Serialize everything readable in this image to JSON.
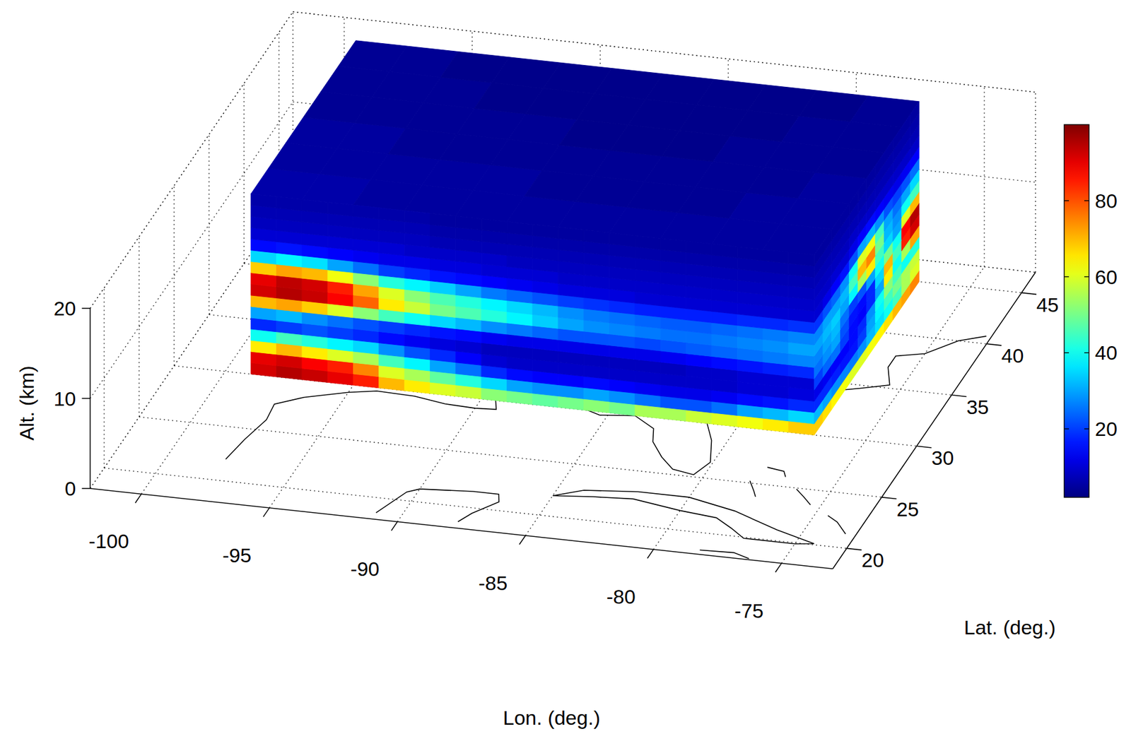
{
  "chart_data": {
    "type": "slice3d",
    "x_label": "Lon. (deg.)",
    "y_label": "Lat. (deg.)",
    "z_label": "Alt. (km)",
    "xlim": [
      -102,
      -73
    ],
    "xticks": [
      -100,
      -95,
      -90,
      -85,
      -80,
      -75
    ],
    "ylim": [
      18,
      47
    ],
    "yticks": [
      20,
      25,
      30,
      35,
      40,
      45
    ],
    "zlim": [
      0,
      20
    ],
    "zticks": [
      0,
      10,
      20
    ],
    "grid": true,
    "colorbar": {
      "range": [
        2,
        100
      ],
      "ticks": [
        20,
        40,
        60,
        80
      ]
    },
    "lat_slice": {
      "lat": 30,
      "lon_edges": [
        -99,
        -98,
        -97,
        -96,
        -95,
        -94,
        -93,
        -92,
        -91,
        -90,
        -89,
        -88,
        -87,
        -86,
        -85,
        -84,
        -83,
        -82,
        -81,
        -80,
        -79,
        -78,
        -77
      ],
      "alt_edges": [
        0,
        1.25,
        2.5,
        3.75,
        5,
        6.25,
        7.5,
        8.75,
        10,
        11.25,
        12.5,
        13.75,
        15,
        16.25,
        17.5,
        18.75,
        20
      ],
      "cells": [
        [
          92,
          95,
          93,
          90,
          85,
          70,
          65,
          60,
          58,
          52,
          50,
          48,
          50,
          52,
          50,
          55,
          55,
          58,
          60,
          62,
          65,
          68
        ],
        [
          90,
          92,
          88,
          85,
          75,
          60,
          55,
          48,
          42,
          35,
          30,
          28,
          28,
          30,
          28,
          25,
          22,
          22,
          25,
          30,
          32,
          35
        ],
        [
          65,
          70,
          65,
          60,
          55,
          45,
          38,
          30,
          25,
          18,
          15,
          14,
          14,
          15,
          14,
          13,
          12,
          12,
          13,
          15,
          16,
          18
        ],
        [
          40,
          45,
          42,
          38,
          35,
          28,
          22,
          18,
          14,
          10,
          9,
          9,
          9,
          9,
          9,
          9,
          9,
          9,
          9,
          10,
          10,
          11
        ],
        [
          18,
          20,
          22,
          20,
          18,
          15,
          13,
          11,
          10,
          8,
          8,
          8,
          8,
          8,
          8,
          8,
          8,
          9,
          9,
          10,
          10,
          10
        ],
        [
          30,
          32,
          28,
          25,
          22,
          20,
          18,
          16,
          15,
          13,
          12,
          12,
          12,
          12,
          12,
          12,
          13,
          14,
          15,
          16,
          17,
          18
        ],
        [
          70,
          72,
          68,
          60,
          52,
          45,
          40,
          35,
          32,
          28,
          26,
          24,
          22,
          22,
          22,
          21,
          22,
          23,
          24,
          25,
          26,
          27
        ],
        [
          92,
          95,
          93,
          88,
          78,
          65,
          58,
          50,
          46,
          42,
          38,
          34,
          30,
          28,
          27,
          26,
          25,
          25,
          26,
          27,
          28,
          30
        ],
        [
          90,
          94,
          92,
          85,
          72,
          60,
          52,
          46,
          42,
          38,
          35,
          32,
          28,
          26,
          25,
          24,
          23,
          23,
          24,
          25,
          26,
          27
        ],
        [
          68,
          72,
          70,
          62,
          52,
          42,
          38,
          34,
          30,
          26,
          24,
          22,
          20,
          19,
          18,
          17,
          17,
          17,
          17,
          18,
          18,
          19
        ],
        [
          35,
          38,
          36,
          30,
          25,
          20,
          18,
          16,
          15,
          14,
          13,
          12,
          11,
          11,
          11,
          10,
          10,
          10,
          10,
          10,
          10,
          10
        ],
        [
          15,
          16,
          15,
          14,
          13,
          12,
          12,
          11,
          11,
          10,
          10,
          10,
          9,
          9,
          9,
          9,
          9,
          9,
          9,
          9,
          9,
          9
        ],
        [
          10,
          10,
          10,
          10,
          10,
          10,
          9,
          9,
          9,
          9,
          8,
          8,
          8,
          8,
          8,
          8,
          8,
          8,
          8,
          8,
          8,
          8
        ],
        [
          8,
          8,
          8,
          8,
          8,
          8,
          8,
          7,
          7,
          7,
          7,
          7,
          7,
          7,
          7,
          7,
          7,
          7,
          7,
          7,
          7,
          7
        ],
        [
          7,
          7,
          7,
          7,
          7,
          7,
          7,
          6,
          6,
          6,
          6,
          6,
          6,
          6,
          6,
          6,
          6,
          6,
          6,
          6,
          6,
          6
        ],
        [
          6,
          6,
          6,
          6,
          6,
          6,
          6,
          5,
          5,
          5,
          5,
          5,
          5,
          5,
          5,
          5,
          5,
          5,
          5,
          5,
          5,
          5
        ]
      ]
    },
    "lon_slice": {
      "lon": -77,
      "lat_edges": [
        30,
        31.25,
        32.5,
        33.75,
        35,
        36.25,
        37.5,
        38.75,
        40,
        41.25,
        42.5,
        43.75,
        45
      ],
      "alt_edges": [
        0,
        1.25,
        2.5,
        3.75,
        5,
        6.25,
        7.5,
        8.75,
        10,
        11.25,
        12.5,
        13.75,
        15,
        16.25,
        17.5,
        18.75,
        20
      ],
      "cells": [
        [
          68,
          66,
          64,
          62,
          60,
          60,
          62,
          64,
          66,
          70,
          72,
          75
        ],
        [
          32,
          30,
          28,
          27,
          26,
          28,
          32,
          36,
          40,
          45,
          55,
          60
        ],
        [
          18,
          18,
          17,
          16,
          16,
          20,
          30,
          38,
          45,
          50,
          55,
          58
        ],
        [
          12,
          13,
          14,
          14,
          15,
          18,
          28,
          40,
          52,
          45,
          40,
          42
        ],
        [
          20,
          24,
          25,
          20,
          15,
          14,
          18,
          30,
          65,
          40,
          55,
          72
        ],
        [
          25,
          28,
          30,
          22,
          16,
          15,
          18,
          35,
          70,
          45,
          85,
          92
        ],
        [
          27,
          30,
          32,
          25,
          20,
          22,
          30,
          40,
          50,
          40,
          88,
          95
        ],
        [
          30,
          32,
          34,
          30,
          38,
          55,
          65,
          45,
          35,
          30,
          60,
          70
        ],
        [
          27,
          30,
          30,
          32,
          45,
          70,
          75,
          50,
          32,
          28,
          40,
          45
        ],
        [
          19,
          22,
          24,
          28,
          40,
          60,
          62,
          45,
          30,
          25,
          30,
          35
        ],
        [
          10,
          12,
          14,
          16,
          22,
          30,
          32,
          28,
          22,
          20,
          22,
          25
        ],
        [
          9,
          9,
          10,
          10,
          12,
          14,
          15,
          14,
          13,
          12,
          13,
          14
        ],
        [
          8,
          8,
          8,
          8,
          9,
          9,
          9,
          9,
          9,
          9,
          9,
          9
        ],
        [
          7,
          7,
          7,
          7,
          7,
          7,
          7,
          7,
          7,
          7,
          7,
          7
        ],
        [
          6,
          6,
          6,
          6,
          6,
          6,
          6,
          6,
          6,
          6,
          6,
          6
        ],
        [
          5,
          5,
          5,
          5,
          5,
          5,
          5,
          5,
          5,
          5,
          5,
          5
        ]
      ]
    },
    "alt_slice": {
      "alt": 20,
      "lon_edges": [
        -99,
        -97,
        -95,
        -93,
        -91,
        -89,
        -87,
        -85,
        -83,
        -81,
        -79,
        -77
      ],
      "lat_edges": [
        30,
        32.5,
        35,
        37.5,
        40,
        42.5,
        45
      ],
      "cells": [
        [
          6,
          6,
          5,
          5,
          5,
          5,
          5,
          5,
          5,
          5,
          5
        ],
        [
          5,
          5,
          5,
          5,
          5,
          4,
          4,
          4,
          4,
          5,
          5
        ],
        [
          5,
          5,
          4,
          4,
          4,
          4,
          4,
          4,
          4,
          4,
          5
        ],
        [
          4,
          4,
          4,
          4,
          4,
          3,
          3,
          3,
          4,
          4,
          4
        ],
        [
          4,
          4,
          4,
          3,
          3,
          3,
          3,
          3,
          3,
          4,
          4
        ],
        [
          4,
          4,
          3,
          3,
          3,
          3,
          3,
          3,
          3,
          3,
          4
        ]
      ]
    }
  }
}
